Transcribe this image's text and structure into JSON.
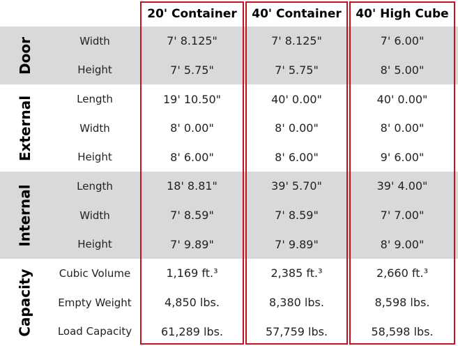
{
  "header": {
    "columns": [
      "20' Container",
      "40' Container",
      "40' High Cube"
    ]
  },
  "groups": [
    {
      "label": "Door",
      "rows": [
        {
          "label": "Width",
          "values": [
            "7' 8.125\"",
            "7' 8.125\"",
            "7' 6.00\""
          ]
        },
        {
          "label": "Height",
          "values": [
            "7' 5.75\"",
            "7' 5.75\"",
            "8' 5.00\""
          ]
        }
      ]
    },
    {
      "label": "External",
      "rows": [
        {
          "label": "Length",
          "values": [
            "19' 10.50\"",
            "40' 0.00\"",
            "40' 0.00\""
          ]
        },
        {
          "label": "Width",
          "values": [
            "8' 0.00\"",
            "8' 0.00\"",
            "8' 0.00\""
          ]
        },
        {
          "label": "Height",
          "values": [
            "8' 6.00\"",
            "8' 6.00\"",
            "9' 6.00\""
          ]
        }
      ]
    },
    {
      "label": "Internal",
      "rows": [
        {
          "label": "Length",
          "values": [
            "18' 8.81\"",
            "39' 5.70\"",
            "39' 4.00\""
          ]
        },
        {
          "label": "Width",
          "values": [
            "7' 8.59\"",
            "7' 8.59\"",
            "7' 7.00\""
          ]
        },
        {
          "label": "Height",
          "values": [
            "7' 9.89\"",
            "7' 9.89\"",
            "8' 9.00\""
          ]
        }
      ]
    },
    {
      "label": "Capacity",
      "rows": [
        {
          "label": "Cubic Volume",
          "values": [
            "1,169 ft.³",
            "2,385 ft.³",
            "2,660 ft.³"
          ]
        },
        {
          "label": "Empty Weight",
          "values": [
            "4,850 lbs.",
            "8,380 lbs.",
            "8,598 lbs."
          ]
        },
        {
          "label": "Load Capacity",
          "values": [
            "61,289 lbs.",
            "57,759 lbs.",
            "58,598 lbs."
          ]
        }
      ]
    }
  ]
}
